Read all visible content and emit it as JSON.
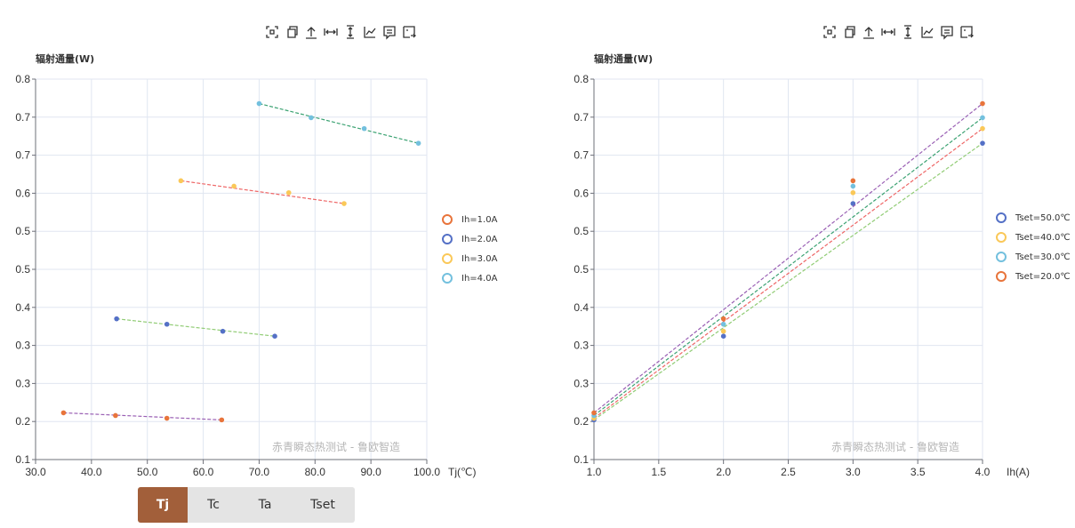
{
  "toolbar_icons": [
    "zoom-select-icon",
    "restore-icon",
    "export-up-icon",
    "horizontal-zoom-icon",
    "vertical-zoom-icon",
    "line-switch-icon",
    "data-view-icon",
    "save-image-icon"
  ],
  "tabs": [
    {
      "label": "Tj",
      "active": true
    },
    {
      "label": "Tc",
      "active": false
    },
    {
      "label": "Ta",
      "active": false
    },
    {
      "label": "Tset",
      "active": false
    }
  ],
  "chart_data": [
    {
      "type": "scatter",
      "title": "",
      "ylabel": "辐射通量(W)",
      "xlabel": "Tj(℃)",
      "xlim": [
        30,
        100
      ],
      "ylim": [
        0.1,
        0.8
      ],
      "x_ticks": [
        "30.0",
        "40.0",
        "50.0",
        "60.0",
        "70.0",
        "80.0",
        "90.0",
        "100.0"
      ],
      "y_ticks": [
        "0.1",
        "0.2",
        "0.3",
        "0.3",
        "0.4",
        "0.5",
        "0.5",
        "0.6",
        "0.7",
        "0.7",
        "0.8"
      ],
      "grid": true,
      "legend_position": "right",
      "watermark": "赤青瞬态热测试 - 鲁欧智造",
      "series": [
        {
          "name": "Ih=1.0A",
          "color": "#e8743b",
          "trend_color": "#9a60b4",
          "points": [
            [
              35.0,
              0.186
            ],
            [
              44.3,
              0.181
            ],
            [
              53.5,
              0.176
            ],
            [
              63.3,
              0.173
            ]
          ]
        },
        {
          "name": "Ih=2.0A",
          "color": "#5470c6",
          "trend_color": "#91cc75",
          "points": [
            [
              44.5,
              0.359
            ],
            [
              53.5,
              0.349
            ],
            [
              63.5,
              0.336
            ],
            [
              72.8,
              0.327
            ]
          ]
        },
        {
          "name": "Ih=3.0A",
          "color": "#fac858",
          "trend_color": "#ee6666",
          "points": [
            [
              56.0,
              0.613
            ],
            [
              65.5,
              0.603
            ],
            [
              75.3,
              0.591
            ],
            [
              85.2,
              0.571
            ]
          ]
        },
        {
          "name": "Ih=4.0A",
          "color": "#73c0de",
          "trend_color": "#3ba272",
          "points": [
            [
              70.0,
              0.755
            ],
            [
              79.3,
              0.729
            ],
            [
              88.8,
              0.709
            ],
            [
              98.5,
              0.682
            ]
          ]
        }
      ]
    },
    {
      "type": "scatter",
      "title": "",
      "ylabel": "辐射通量(W)",
      "xlabel": "Ih(A)",
      "xlim": [
        1.0,
        4.0
      ],
      "ylim": [
        0.1,
        0.8
      ],
      "x_ticks": [
        "1.0",
        "1.5",
        "2.0",
        "2.5",
        "3.0",
        "3.5",
        "4.0"
      ],
      "y_ticks": [
        "0.1",
        "0.2",
        "0.3",
        "0.3",
        "0.4",
        "0.5",
        "0.5",
        "0.6",
        "0.7",
        "0.7",
        "0.8"
      ],
      "grid": true,
      "legend_position": "right",
      "watermark": "赤青瞬态热测试 - 鲁欧智造",
      "series": [
        {
          "name": "Tset=50.0℃",
          "color": "#5470c6",
          "trend_color": "#91cc75",
          "points": [
            [
              1.0,
              0.173
            ],
            [
              2.0,
              0.327
            ],
            [
              3.0,
              0.571
            ],
            [
              4.0,
              0.682
            ]
          ]
        },
        {
          "name": "Tset=40.0℃",
          "color": "#fac858",
          "trend_color": "#ee6666",
          "points": [
            [
              1.0,
              0.176
            ],
            [
              2.0,
              0.336
            ],
            [
              3.0,
              0.591
            ],
            [
              4.0,
              0.709
            ]
          ]
        },
        {
          "name": "Tset=30.0℃",
          "color": "#73c0de",
          "trend_color": "#3ba272",
          "points": [
            [
              1.0,
              0.181
            ],
            [
              2.0,
              0.349
            ],
            [
              3.0,
              0.603
            ],
            [
              4.0,
              0.729
            ]
          ]
        },
        {
          "name": "Tset=20.0℃",
          "color": "#e8743b",
          "trend_color": "#9a60b4",
          "points": [
            [
              1.0,
              0.186
            ],
            [
              2.0,
              0.359
            ],
            [
              3.0,
              0.613
            ],
            [
              4.0,
              0.755
            ]
          ]
        }
      ]
    }
  ]
}
